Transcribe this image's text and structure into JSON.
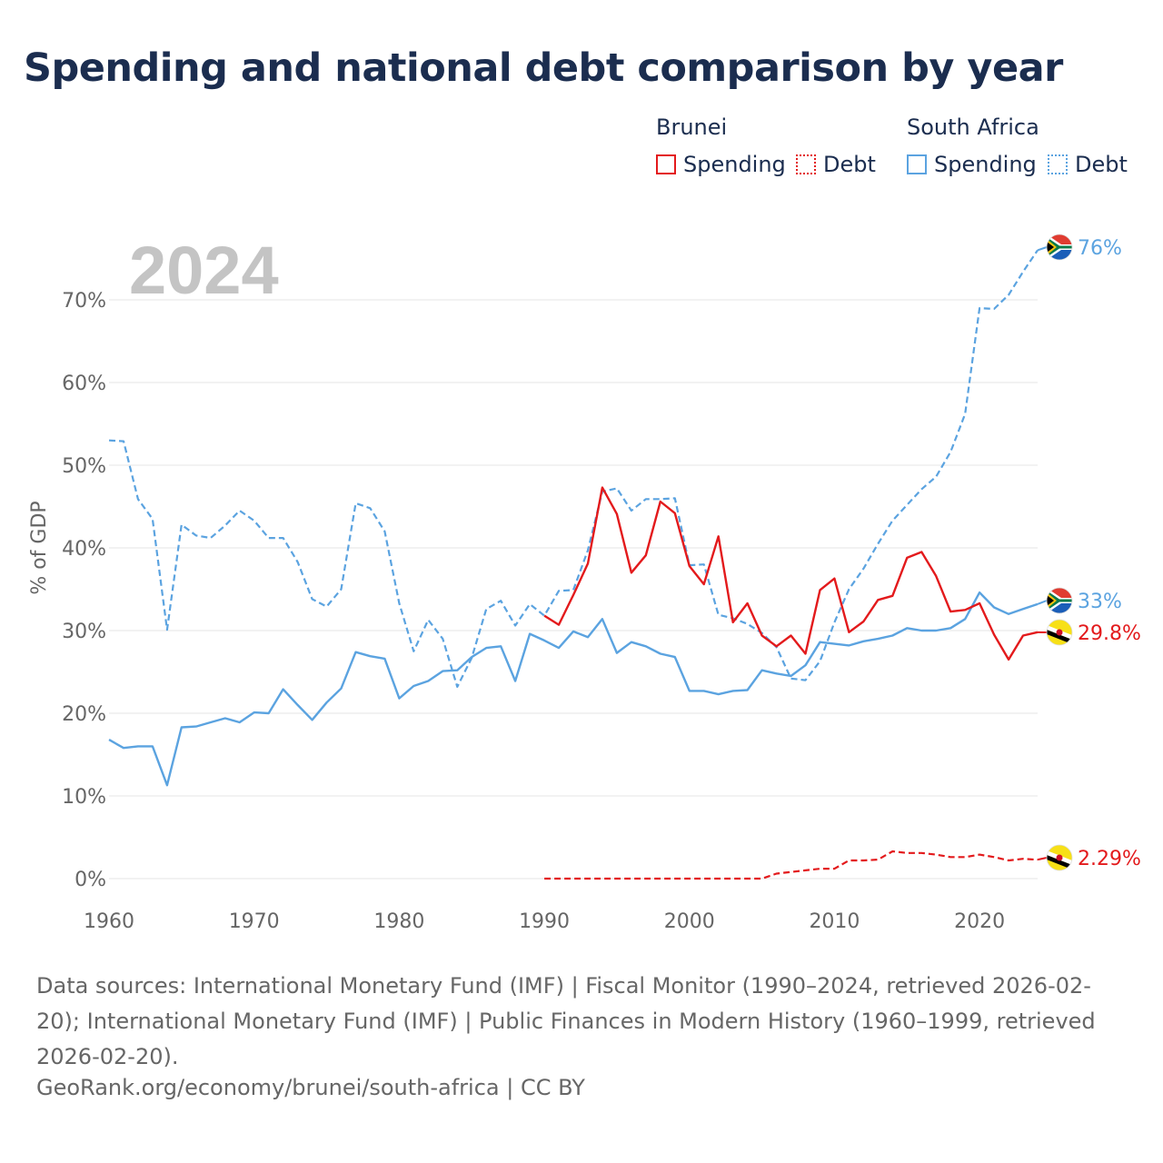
{
  "title": "Spending and national debt comparison by year",
  "legend": {
    "groups": [
      {
        "country": "Brunei",
        "items": [
          {
            "label": "Spending",
            "style": "solid",
            "color": "#e31a1c"
          },
          {
            "label": "Debt",
            "style": "dotted",
            "color": "#e31a1c"
          }
        ]
      },
      {
        "country": "South Africa",
        "items": [
          {
            "label": "Spending",
            "style": "solid",
            "color": "#5ba3e0"
          },
          {
            "label": "Debt",
            "style": "dotted",
            "color": "#5ba3e0"
          }
        ]
      }
    ]
  },
  "year_watermark": "2024",
  "source_text": "Data sources: International Monetary Fund (IMF) | Fiscal Monitor (1990–2024, retrieved 2026-02-20); International Monetary Fund (IMF) | Public Finances in Modern History (1960–1999, retrieved 2026-02-20).",
  "attribution": "GeoRank.org/economy/brunei/south-africa | CC BY",
  "colors": {
    "brunei": "#e31a1c",
    "south_africa": "#5ba3e0",
    "grid": "#e6e6e6",
    "axis_text": "#666666"
  },
  "chart_data": {
    "type": "line",
    "ylabel": "% of GDP",
    "xlim": [
      1960,
      2024
    ],
    "ylim": [
      0,
      76
    ],
    "x_ticks": [
      1960,
      1970,
      1980,
      1990,
      2000,
      2010,
      2020
    ],
    "y_ticks": [
      0,
      10,
      20,
      30,
      40,
      50,
      60,
      70
    ],
    "y_tick_labels": [
      "0%",
      "10%",
      "20%",
      "30%",
      "40%",
      "50%",
      "60%",
      "70%"
    ],
    "series": [
      {
        "name": "South Africa Debt",
        "country": "South Africa",
        "metric": "Debt",
        "style": "dashed",
        "color": "#5ba3e0",
        "end_label": "76%",
        "x": [
          1960,
          1961,
          1962,
          1963,
          1964,
          1965,
          1966,
          1967,
          1968,
          1969,
          1970,
          1971,
          1972,
          1973,
          1974,
          1975,
          1976,
          1977,
          1978,
          1979,
          1980,
          1981,
          1982,
          1983,
          1984,
          1985,
          1986,
          1987,
          1988,
          1989,
          1990,
          1991,
          1992,
          1993,
          1994,
          1995,
          1996,
          1997,
          1998,
          1999,
          2000,
          2001,
          2002,
          2003,
          2004,
          2005,
          2006,
          2007,
          2008,
          2009,
          2010,
          2011,
          2012,
          2013,
          2014,
          2015,
          2016,
          2017,
          2018,
          2019,
          2020,
          2021,
          2022,
          2023,
          2024
        ],
        "y": [
          53.0,
          52.9,
          45.9,
          43.5,
          30.1,
          42.8,
          41.5,
          41.2,
          42.7,
          44.5,
          43.3,
          41.2,
          41.2,
          38.3,
          33.8,
          32.9,
          35.0,
          45.4,
          44.8,
          42.0,
          33.3,
          27.5,
          31.3,
          29.0,
          23.2,
          26.7,
          32.6,
          33.6,
          30.6,
          33.2,
          31.8,
          34.8,
          34.9,
          39.7,
          46.8,
          47.2,
          44.5,
          45.9,
          45.9,
          46.0,
          37.9,
          38.0,
          31.9,
          31.5,
          30.8,
          29.7,
          28.0,
          24.2,
          24.0,
          26.3,
          31.0,
          35.0,
          37.5,
          40.5,
          43.3,
          45.2,
          47.1,
          48.6,
          51.6,
          56.2,
          69.0,
          68.9,
          70.6,
          73.4,
          76.0
        ]
      },
      {
        "name": "South Africa Spending",
        "country": "South Africa",
        "metric": "Spending",
        "style": "solid",
        "color": "#5ba3e0",
        "end_label": "33%",
        "x": [
          1960,
          1961,
          1962,
          1963,
          1964,
          1965,
          1966,
          1967,
          1968,
          1969,
          1970,
          1971,
          1972,
          1973,
          1974,
          1975,
          1976,
          1977,
          1978,
          1979,
          1980,
          1981,
          1982,
          1983,
          1984,
          1985,
          1986,
          1987,
          1988,
          1989,
          1990,
          1991,
          1992,
          1993,
          1994,
          1995,
          1996,
          1997,
          1998,
          1999,
          2000,
          2001,
          2002,
          2003,
          2004,
          2005,
          2006,
          2007,
          2008,
          2009,
          2010,
          2011,
          2012,
          2013,
          2014,
          2015,
          2016,
          2017,
          2018,
          2019,
          2020,
          2021,
          2022,
          2023,
          2024
        ],
        "y": [
          16.8,
          15.8,
          16.0,
          16.0,
          11.3,
          18.3,
          18.4,
          18.9,
          19.4,
          18.9,
          20.1,
          20.0,
          22.9,
          21.0,
          19.2,
          21.3,
          23.0,
          27.4,
          26.9,
          26.6,
          21.8,
          23.3,
          23.9,
          25.1,
          25.2,
          26.8,
          27.9,
          28.1,
          23.9,
          29.6,
          28.8,
          27.9,
          29.9,
          29.2,
          31.4,
          27.3,
          28.6,
          28.1,
          27.2,
          26.8,
          22.7,
          22.7,
          22.3,
          22.7,
          22.8,
          25.2,
          24.8,
          24.5,
          25.8,
          28.6,
          28.4,
          28.2,
          28.7,
          29.0,
          29.4,
          30.3,
          30.0,
          30.0,
          30.3,
          31.4,
          34.6,
          32.8,
          32.0,
          32.6,
          33.2
        ]
      },
      {
        "name": "Brunei Spending",
        "country": "Brunei",
        "metric": "Spending",
        "style": "solid",
        "color": "#e31a1c",
        "end_label": "29.8%",
        "x": [
          1990,
          1991,
          1992,
          1993,
          1994,
          1995,
          1996,
          1997,
          1998,
          1999,
          2000,
          2001,
          2002,
          2003,
          2004,
          2005,
          2006,
          2007,
          2008,
          2009,
          2010,
          2011,
          2012,
          2013,
          2014,
          2015,
          2016,
          2017,
          2018,
          2019,
          2020,
          2021,
          2022,
          2023,
          2024
        ],
        "y": [
          31.8,
          30.7,
          34.3,
          38.1,
          47.3,
          44.1,
          37.0,
          39.1,
          45.6,
          44.2,
          37.8,
          35.6,
          41.4,
          31.0,
          33.3,
          29.4,
          28.1,
          29.4,
          27.2,
          34.9,
          36.3,
          29.8,
          31.1,
          33.7,
          34.2,
          38.8,
          39.5,
          36.6,
          32.3,
          32.5,
          33.3,
          29.5,
          26.5,
          29.4,
          29.8
        ]
      },
      {
        "name": "Brunei Debt",
        "country": "Brunei",
        "metric": "Debt",
        "style": "dashed",
        "color": "#e31a1c",
        "end_label": "2.29%",
        "x": [
          1990,
          1991,
          1992,
          1993,
          1994,
          1995,
          1996,
          1997,
          1998,
          1999,
          2000,
          2001,
          2002,
          2003,
          2004,
          2005,
          2006,
          2007,
          2008,
          2009,
          2010,
          2011,
          2012,
          2013,
          2014,
          2015,
          2016,
          2017,
          2018,
          2019,
          2020,
          2021,
          2022,
          2023,
          2024
        ],
        "y": [
          0,
          0,
          0,
          0,
          0,
          0,
          0,
          0,
          0,
          0,
          0,
          0,
          0,
          0,
          0,
          0,
          0.6,
          0.8,
          1.0,
          1.2,
          1.2,
          2.2,
          2.2,
          2.3,
          3.3,
          3.1,
          3.1,
          2.9,
          2.6,
          2.6,
          2.9,
          2.6,
          2.2,
          2.4,
          2.29
        ]
      }
    ]
  }
}
